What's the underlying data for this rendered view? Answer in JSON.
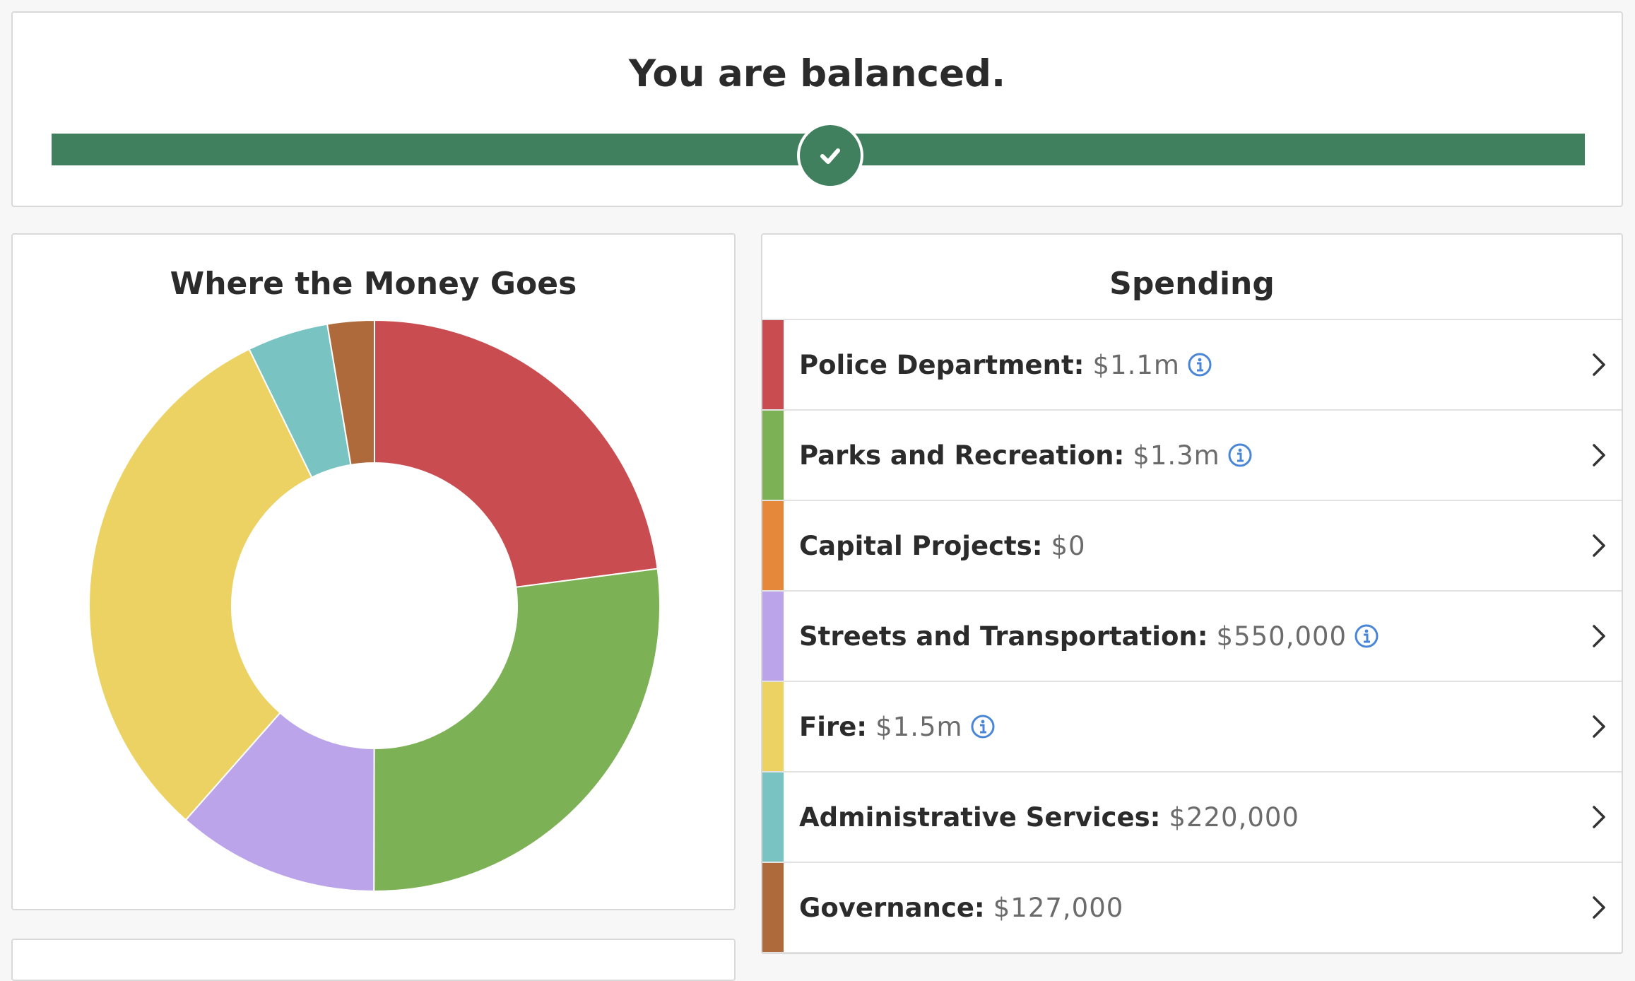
{
  "balance": {
    "title": "You are balanced.",
    "status": "balanced",
    "marker_position": 0.5,
    "bar_color": "#41805e",
    "marker_icon": "check-icon"
  },
  "chart_data": {
    "type": "pie",
    "title": "Where the Money Goes",
    "donut": true,
    "categories": [
      "Police Department",
      "Parks and Recreation",
      "Capital Projects",
      "Streets and Transportation",
      "Fire",
      "Administrative Services",
      "Governance"
    ],
    "values": [
      1100000,
      1300000,
      0,
      550000,
      1500000,
      220000,
      127000
    ],
    "colors": [
      "#c94c51",
      "#7db155",
      "#e5883a",
      "#bba4ea",
      "#ecd263",
      "#79c4c3",
      "#ae6a3a"
    ]
  },
  "spending": {
    "title": "Spending",
    "items": [
      {
        "name": "Police Department:",
        "amount": "$1.1m",
        "color": "#c94c51",
        "info": true
      },
      {
        "name": "Parks and Recreation:",
        "amount": "$1.3m",
        "color": "#7db155",
        "info": true
      },
      {
        "name": "Capital Projects:",
        "amount": "$0",
        "color": "#e5883a",
        "info": false
      },
      {
        "name": "Streets and Transportation:",
        "amount": "$550,000",
        "color": "#bba4ea",
        "info": true
      },
      {
        "name": "Fire:",
        "amount": "$1.5m",
        "color": "#ecd263",
        "info": true
      },
      {
        "name": "Administrative Services:",
        "amount": "$220,000",
        "color": "#79c4c3",
        "info": false
      },
      {
        "name": "Governance:",
        "amount": "$127,000",
        "color": "#ae6a3a",
        "info": false
      }
    ]
  }
}
